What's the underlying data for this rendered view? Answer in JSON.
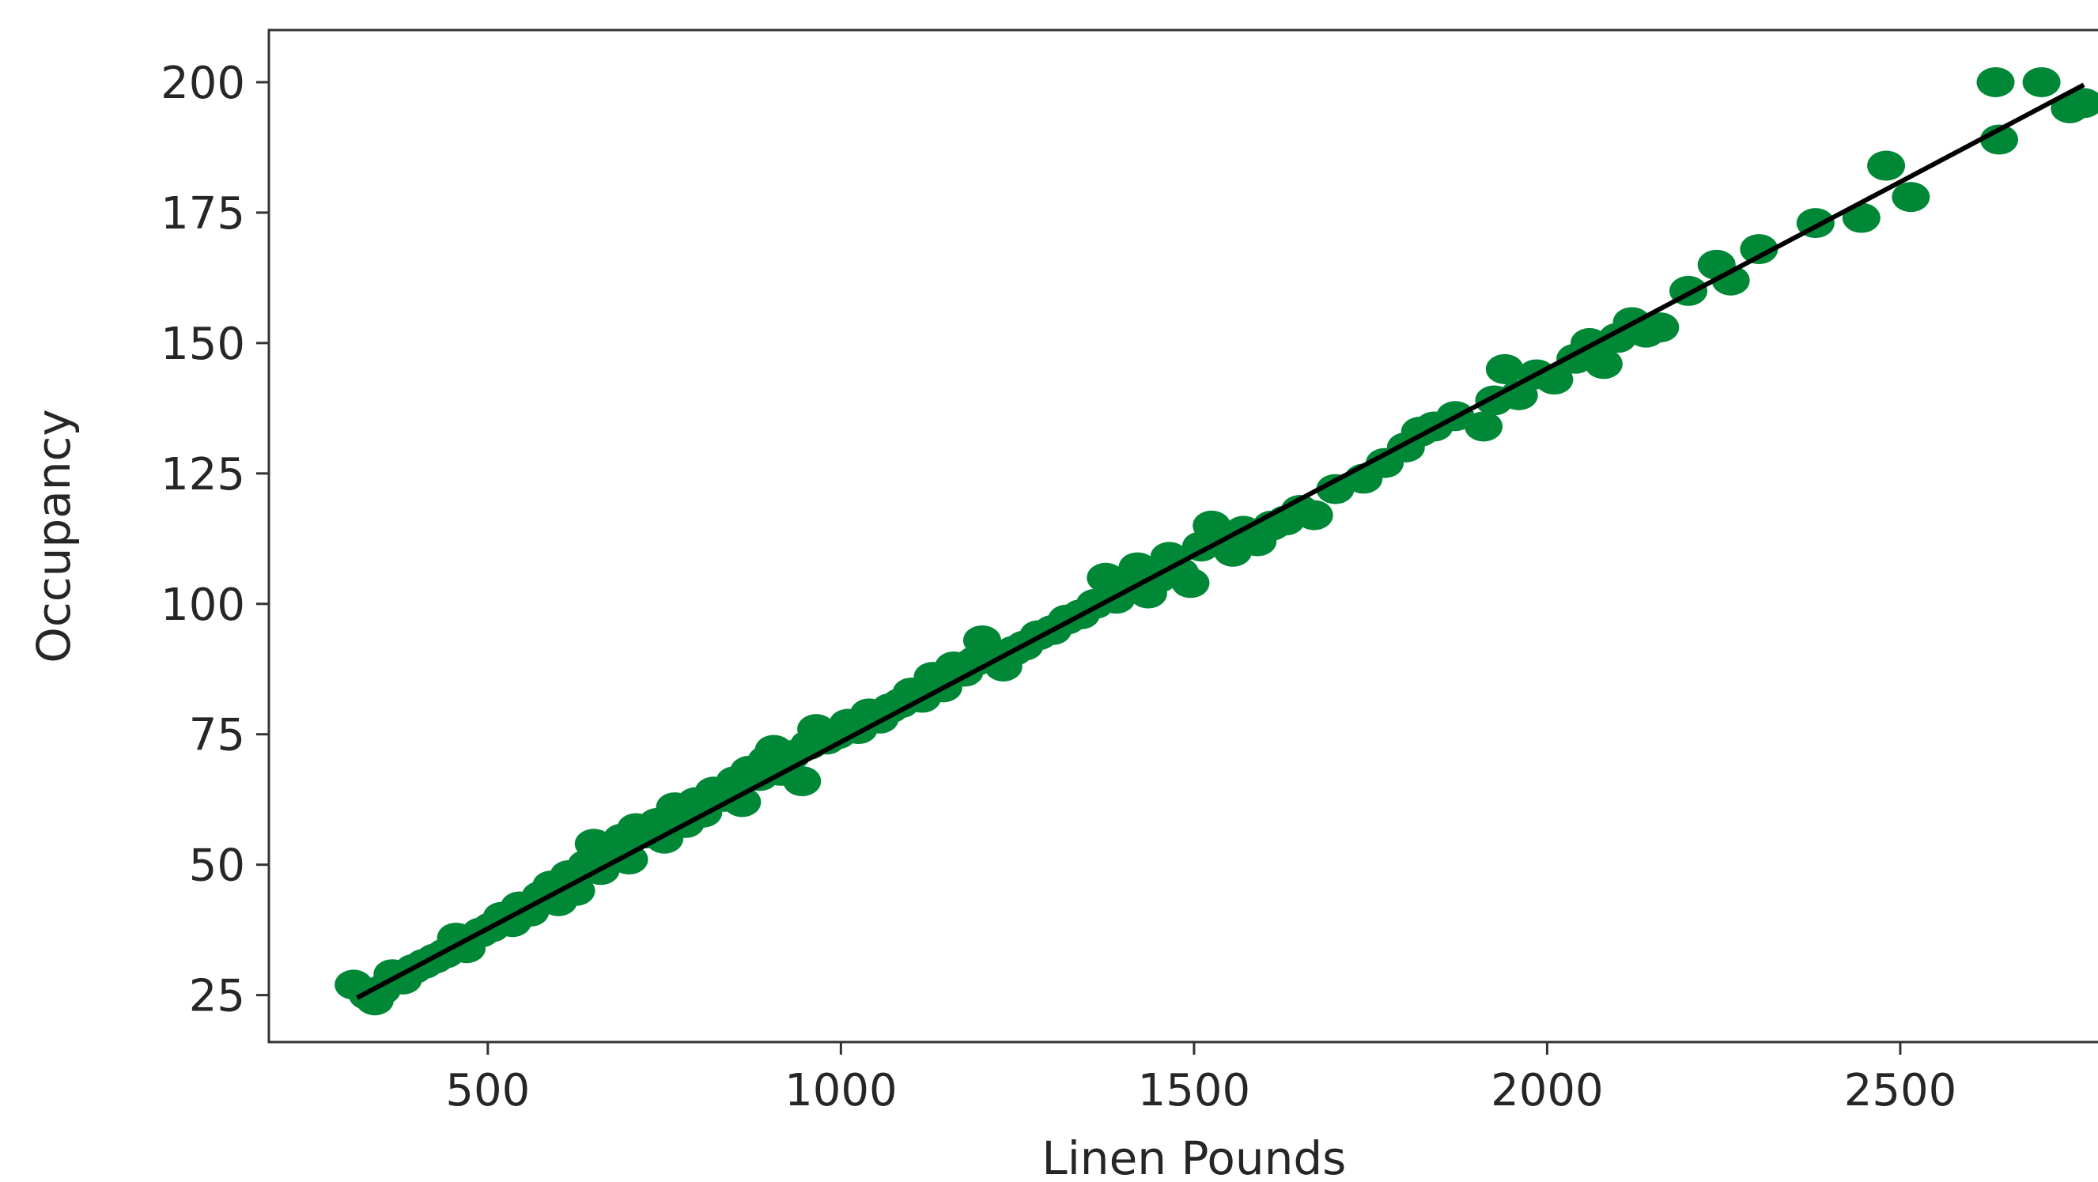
{
  "chart_data": {
    "type": "scatter",
    "title": "",
    "xlabel": "Linen Pounds",
    "ylabel": "Occupancy",
    "xlim": [
      190,
      2780
    ],
    "ylim": [
      16,
      210
    ],
    "xticks": [
      500,
      1000,
      1500,
      2000,
      2500
    ],
    "yticks": [
      25,
      50,
      75,
      100,
      125,
      150,
      175,
      200
    ],
    "grid": false,
    "legend": "none",
    "point_color": "#008837",
    "line_color": "#000000",
    "fit_line": {
      "x": [
        315,
        2760
      ],
      "y": [
        24.5,
        199.5
      ]
    },
    "points": [
      {
        "x": 310,
        "y": 27
      },
      {
        "x": 330,
        "y": 25
      },
      {
        "x": 340,
        "y": 24
      },
      {
        "x": 350,
        "y": 26
      },
      {
        "x": 365,
        "y": 29
      },
      {
        "x": 380,
        "y": 28
      },
      {
        "x": 395,
        "y": 30
      },
      {
        "x": 410,
        "y": 31
      },
      {
        "x": 425,
        "y": 32
      },
      {
        "x": 440,
        "y": 33
      },
      {
        "x": 455,
        "y": 36
      },
      {
        "x": 470,
        "y": 34
      },
      {
        "x": 490,
        "y": 37
      },
      {
        "x": 505,
        "y": 38
      },
      {
        "x": 520,
        "y": 40
      },
      {
        "x": 535,
        "y": 39
      },
      {
        "x": 545,
        "y": 42
      },
      {
        "x": 560,
        "y": 41
      },
      {
        "x": 575,
        "y": 44
      },
      {
        "x": 590,
        "y": 46
      },
      {
        "x": 600,
        "y": 43
      },
      {
        "x": 615,
        "y": 48
      },
      {
        "x": 625,
        "y": 45
      },
      {
        "x": 640,
        "y": 50
      },
      {
        "x": 650,
        "y": 54
      },
      {
        "x": 660,
        "y": 49
      },
      {
        "x": 675,
        "y": 52
      },
      {
        "x": 690,
        "y": 55
      },
      {
        "x": 700,
        "y": 51
      },
      {
        "x": 710,
        "y": 57
      },
      {
        "x": 725,
        "y": 56
      },
      {
        "x": 740,
        "y": 58
      },
      {
        "x": 750,
        "y": 55
      },
      {
        "x": 765,
        "y": 61
      },
      {
        "x": 780,
        "y": 58
      },
      {
        "x": 795,
        "y": 62
      },
      {
        "x": 805,
        "y": 60
      },
      {
        "x": 820,
        "y": 64
      },
      {
        "x": 835,
        "y": 63
      },
      {
        "x": 850,
        "y": 66
      },
      {
        "x": 860,
        "y": 62
      },
      {
        "x": 870,
        "y": 68
      },
      {
        "x": 885,
        "y": 67
      },
      {
        "x": 895,
        "y": 70
      },
      {
        "x": 905,
        "y": 72
      },
      {
        "x": 915,
        "y": 68
      },
      {
        "x": 930,
        "y": 71
      },
      {
        "x": 945,
        "y": 66
      },
      {
        "x": 955,
        "y": 73
      },
      {
        "x": 965,
        "y": 76
      },
      {
        "x": 980,
        "y": 74
      },
      {
        "x": 995,
        "y": 75
      },
      {
        "x": 1010,
        "y": 77
      },
      {
        "x": 1025,
        "y": 76
      },
      {
        "x": 1040,
        "y": 79
      },
      {
        "x": 1055,
        "y": 78
      },
      {
        "x": 1070,
        "y": 80
      },
      {
        "x": 1085,
        "y": 81
      },
      {
        "x": 1100,
        "y": 83
      },
      {
        "x": 1115,
        "y": 82
      },
      {
        "x": 1130,
        "y": 86
      },
      {
        "x": 1145,
        "y": 84
      },
      {
        "x": 1160,
        "y": 88
      },
      {
        "x": 1175,
        "y": 87
      },
      {
        "x": 1190,
        "y": 89
      },
      {
        "x": 1200,
        "y": 93
      },
      {
        "x": 1215,
        "y": 90
      },
      {
        "x": 1230,
        "y": 88
      },
      {
        "x": 1245,
        "y": 91
      },
      {
        "x": 1260,
        "y": 92
      },
      {
        "x": 1280,
        "y": 94
      },
      {
        "x": 1300,
        "y": 95
      },
      {
        "x": 1320,
        "y": 97
      },
      {
        "x": 1340,
        "y": 98
      },
      {
        "x": 1360,
        "y": 100
      },
      {
        "x": 1375,
        "y": 105
      },
      {
        "x": 1390,
        "y": 101
      },
      {
        "x": 1405,
        "y": 103
      },
      {
        "x": 1420,
        "y": 107
      },
      {
        "x": 1435,
        "y": 102
      },
      {
        "x": 1450,
        "y": 105
      },
      {
        "x": 1465,
        "y": 109
      },
      {
        "x": 1480,
        "y": 106
      },
      {
        "x": 1495,
        "y": 104
      },
      {
        "x": 1510,
        "y": 111
      },
      {
        "x": 1525,
        "y": 115
      },
      {
        "x": 1540,
        "y": 113
      },
      {
        "x": 1555,
        "y": 110
      },
      {
        "x": 1570,
        "y": 114
      },
      {
        "x": 1590,
        "y": 112
      },
      {
        "x": 1610,
        "y": 115
      },
      {
        "x": 1630,
        "y": 116
      },
      {
        "x": 1650,
        "y": 118
      },
      {
        "x": 1670,
        "y": 117
      },
      {
        "x": 1700,
        "y": 122
      },
      {
        "x": 1740,
        "y": 124
      },
      {
        "x": 1770,
        "y": 127
      },
      {
        "x": 1800,
        "y": 130
      },
      {
        "x": 1820,
        "y": 133
      },
      {
        "x": 1840,
        "y": 134
      },
      {
        "x": 1870,
        "y": 136
      },
      {
        "x": 1910,
        "y": 134
      },
      {
        "x": 1925,
        "y": 139
      },
      {
        "x": 1940,
        "y": 145
      },
      {
        "x": 1960,
        "y": 140
      },
      {
        "x": 1985,
        "y": 144
      },
      {
        "x": 2010,
        "y": 143
      },
      {
        "x": 2040,
        "y": 147
      },
      {
        "x": 2060,
        "y": 150
      },
      {
        "x": 2080,
        "y": 146
      },
      {
        "x": 2100,
        "y": 151
      },
      {
        "x": 2120,
        "y": 154
      },
      {
        "x": 2140,
        "y": 152
      },
      {
        "x": 2160,
        "y": 153
      },
      {
        "x": 2200,
        "y": 160
      },
      {
        "x": 2240,
        "y": 165
      },
      {
        "x": 2260,
        "y": 162
      },
      {
        "x": 2300,
        "y": 168
      },
      {
        "x": 2380,
        "y": 173
      },
      {
        "x": 2445,
        "y": 174
      },
      {
        "x": 2480,
        "y": 184
      },
      {
        "x": 2515,
        "y": 178
      },
      {
        "x": 2635,
        "y": 200
      },
      {
        "x": 2640,
        "y": 189
      },
      {
        "x": 2700,
        "y": 200
      },
      {
        "x": 2740,
        "y": 195
      },
      {
        "x": 2760,
        "y": 196
      }
    ]
  }
}
